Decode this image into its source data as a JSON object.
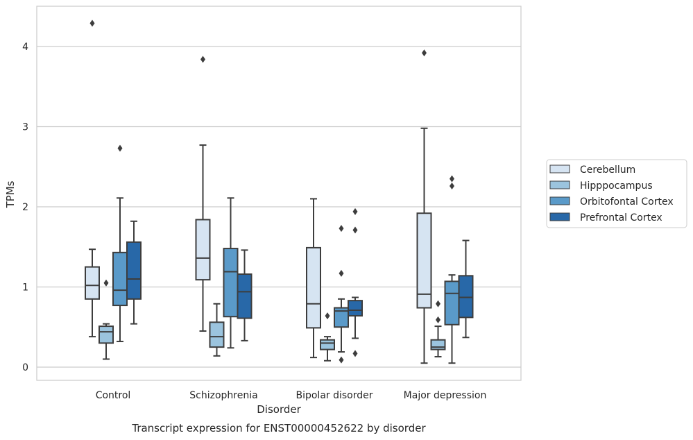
{
  "chart_data": {
    "type": "box",
    "title": "",
    "caption": "Transcript expression for ENST00000452622 by disorder",
    "xlabel": "Disorder",
    "ylabel": "TPMs",
    "ylim": [
      -0.15,
      4.5
    ],
    "yticks": [
      0,
      1,
      2,
      3,
      4
    ],
    "grid": "horizontal",
    "legend_position": "right",
    "categories": [
      "Control",
      "Schizophrenia",
      "Bipolar disorder",
      "Major depression"
    ],
    "series": [
      {
        "name": "Cerebellum",
        "color": "#d6e4f2",
        "boxes": [
          {
            "whislo": 0.38,
            "q1": 0.85,
            "med": 1.02,
            "q3": 1.25,
            "whishi": 1.47,
            "fliers": [
              4.29
            ]
          },
          {
            "whislo": 0.45,
            "q1": 1.09,
            "med": 1.36,
            "q3": 1.84,
            "whishi": 2.77,
            "fliers": [
              3.84
            ]
          },
          {
            "whislo": 0.12,
            "q1": 0.49,
            "med": 0.79,
            "q3": 1.49,
            "whishi": 2.1,
            "fliers": []
          },
          {
            "whislo": 0.05,
            "q1": 0.74,
            "med": 0.91,
            "q3": 1.92,
            "whishi": 2.98,
            "fliers": [
              3.92
            ]
          }
        ]
      },
      {
        "name": "Hipppocampus",
        "color": "#9bc4de",
        "boxes": [
          {
            "whislo": 0.1,
            "q1": 0.3,
            "med": 0.44,
            "q3": 0.51,
            "whishi": 0.54,
            "fliers": [
              1.05
            ]
          },
          {
            "whislo": 0.14,
            "q1": 0.25,
            "med": 0.38,
            "q3": 0.56,
            "whishi": 0.79,
            "fliers": []
          },
          {
            "whislo": 0.08,
            "q1": 0.22,
            "med": 0.3,
            "q3": 0.34,
            "whishi": 0.38,
            "fliers": [
              0.64
            ]
          },
          {
            "whislo": 0.13,
            "q1": 0.22,
            "med": 0.25,
            "q3": 0.34,
            "whishi": 0.51,
            "fliers": [
              0.79,
              0.59
            ]
          }
        ]
      },
      {
        "name": "Orbitofontal Cortex",
        "color": "#5a9ac9",
        "boxes": [
          {
            "whislo": 0.32,
            "q1": 0.77,
            "med": 0.96,
            "q3": 1.43,
            "whishi": 2.11,
            "fliers": [
              2.73
            ]
          },
          {
            "whislo": 0.24,
            "q1": 0.63,
            "med": 1.19,
            "q3": 1.48,
            "whishi": 2.11,
            "fliers": []
          },
          {
            "whislo": 0.19,
            "q1": 0.5,
            "med": 0.7,
            "q3": 0.74,
            "whishi": 0.85,
            "fliers": [
              1.73,
              1.17,
              0.09
            ]
          },
          {
            "whislo": 0.05,
            "q1": 0.53,
            "med": 0.92,
            "q3": 1.07,
            "whishi": 1.15,
            "fliers": [
              2.35,
              2.26
            ]
          }
        ]
      },
      {
        "name": "Prefrontal Cortex",
        "color": "#2868a8",
        "boxes": [
          {
            "whislo": 0.54,
            "q1": 0.85,
            "med": 1.1,
            "q3": 1.56,
            "whishi": 1.82,
            "fliers": []
          },
          {
            "whislo": 0.33,
            "q1": 0.61,
            "med": 0.94,
            "q3": 1.16,
            "whishi": 1.46,
            "fliers": []
          },
          {
            "whislo": 0.36,
            "q1": 0.64,
            "med": 0.71,
            "q3": 0.83,
            "whishi": 0.87,
            "fliers": [
              1.94,
              1.71,
              0.17
            ]
          },
          {
            "whislo": 0.37,
            "q1": 0.62,
            "med": 0.87,
            "q3": 1.14,
            "whishi": 1.58,
            "fliers": []
          }
        ]
      }
    ]
  }
}
